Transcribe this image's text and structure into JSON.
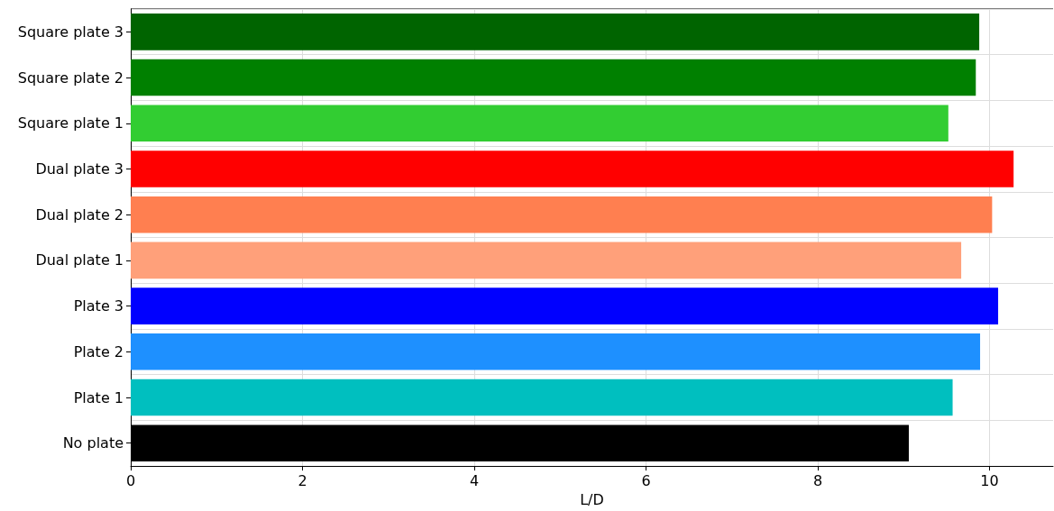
{
  "chart_data": {
    "type": "bar",
    "orientation": "horizontal",
    "xlabel": "L/D",
    "categories": [
      "Square plate 3",
      "Square plate 2",
      "Square plate 1",
      "Dual plate 3",
      "Dual plate 2",
      "Dual plate 1",
      "Plate 3",
      "Plate 2",
      "Plate 1",
      "No plate"
    ],
    "values": [
      9.88,
      9.84,
      9.52,
      10.28,
      10.03,
      9.67,
      10.1,
      9.89,
      9.57,
      9.06
    ],
    "colors": [
      "#006400",
      "#008000",
      "#32cd32",
      "#ff0000",
      "#ff7f50",
      "#ffa07a",
      "#0000ff",
      "#1e90ff",
      "#00bfbf",
      "#000000"
    ],
    "xlim": [
      0,
      10.74
    ],
    "xticks": [
      0,
      2,
      4,
      6,
      8,
      10
    ],
    "grid": true
  }
}
